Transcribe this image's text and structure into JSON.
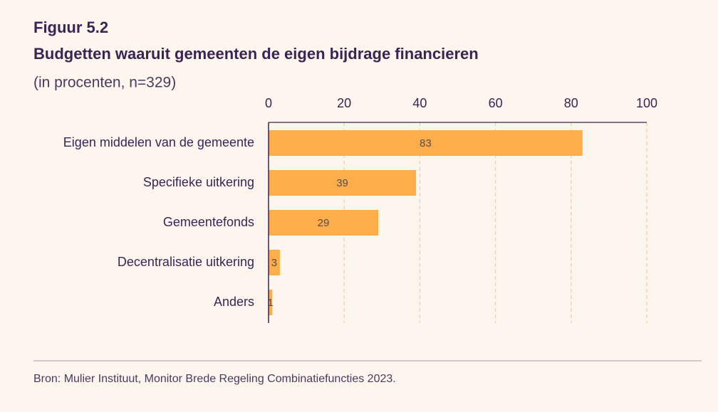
{
  "chart_data": {
    "type": "bar",
    "orientation": "horizontal",
    "figure_label": "Figuur 5.2",
    "title": "Budgetten waaruit gemeenten de eigen bijdrage financieren",
    "subtitle": "(in procenten, n=329)",
    "source": "Bron: Mulier Instituut, Monitor Brede Regeling Combinatiefuncties 2023.",
    "categories": [
      "Eigen middelen van de gemeente",
      "Specifieke uitkering",
      "Gemeentefonds",
      "Decentralisatie uitkering",
      "Anders"
    ],
    "values": [
      83,
      39,
      29,
      3,
      1
    ],
    "color": "#fdae4b",
    "xlim": [
      0,
      100
    ],
    "xticks": [
      0,
      20,
      40,
      60,
      80,
      100
    ],
    "grid": true
  }
}
